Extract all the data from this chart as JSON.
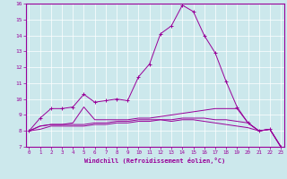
{
  "xlabel": "Windchill (Refroidissement éolien,°C)",
  "bg_color": "#cce8ec",
  "line_color": "#990099",
  "grid_color": "#ffffff",
  "xmin": 0,
  "xmax": 23,
  "ymin": 7,
  "ymax": 16,
  "x_ticks": [
    0,
    1,
    2,
    3,
    4,
    5,
    6,
    7,
    8,
    9,
    10,
    11,
    12,
    13,
    14,
    15,
    16,
    17,
    18,
    19,
    20,
    21,
    22,
    23
  ],
  "y_ticks": [
    7,
    8,
    9,
    10,
    11,
    12,
    13,
    14,
    15,
    16
  ],
  "series": [
    {
      "x": [
        0,
        1,
        2,
        3,
        4,
        5,
        6,
        7,
        8,
        9,
        10,
        11,
        12,
        13,
        14,
        15,
        16,
        17,
        18,
        19,
        20,
        21,
        22,
        23
      ],
      "y": [
        8.0,
        8.8,
        9.4,
        9.4,
        9.5,
        10.3,
        9.8,
        9.9,
        10.0,
        9.9,
        11.4,
        12.2,
        14.1,
        14.6,
        15.9,
        15.5,
        14.0,
        12.9,
        11.1,
        9.5,
        8.5,
        8.0,
        8.1,
        7.0
      ],
      "marker": "+"
    },
    {
      "x": [
        0,
        1,
        2,
        3,
        4,
        5,
        6,
        7,
        8,
        9,
        10,
        11,
        12,
        13,
        14,
        15,
        16,
        17,
        18,
        19,
        20,
        21,
        22,
        23
      ],
      "y": [
        8.0,
        8.3,
        8.4,
        8.4,
        8.5,
        9.5,
        8.7,
        8.7,
        8.7,
        8.7,
        8.8,
        8.8,
        8.9,
        9.0,
        9.1,
        9.2,
        9.3,
        9.4,
        9.4,
        9.4,
        8.5,
        8.0,
        8.1,
        7.0
      ],
      "marker": null
    },
    {
      "x": [
        0,
        1,
        2,
        3,
        4,
        5,
        6,
        7,
        8,
        9,
        10,
        11,
        12,
        13,
        14,
        15,
        16,
        17,
        18,
        19,
        20,
        21,
        22,
        23
      ],
      "y": [
        8.0,
        8.3,
        8.4,
        8.4,
        8.4,
        8.4,
        8.5,
        8.5,
        8.6,
        8.6,
        8.7,
        8.7,
        8.7,
        8.7,
        8.8,
        8.8,
        8.8,
        8.7,
        8.7,
        8.6,
        8.5,
        8.0,
        8.1,
        7.0
      ],
      "marker": null
    },
    {
      "x": [
        0,
        1,
        2,
        3,
        4,
        5,
        6,
        7,
        8,
        9,
        10,
        11,
        12,
        13,
        14,
        15,
        16,
        17,
        18,
        19,
        20,
        21,
        22,
        23
      ],
      "y": [
        8.0,
        8.1,
        8.3,
        8.3,
        8.3,
        8.3,
        8.4,
        8.4,
        8.5,
        8.5,
        8.6,
        8.6,
        8.7,
        8.6,
        8.7,
        8.7,
        8.6,
        8.5,
        8.4,
        8.3,
        8.2,
        8.0,
        8.1,
        7.0
      ],
      "marker": null
    }
  ]
}
